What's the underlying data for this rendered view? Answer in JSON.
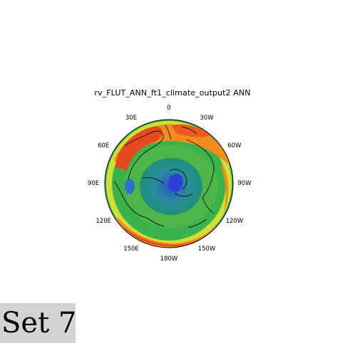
{
  "map": {
    "title": "rv_FLUT_ANN_ft1_climate_output2  ANN",
    "projection": "north polar stereographic",
    "longitude_labels": [
      {
        "id": "lon-0",
        "text": "0",
        "lon": 0
      },
      {
        "id": "lon-30w",
        "text": "30W",
        "lon": -30
      },
      {
        "id": "lon-60w",
        "text": "60W",
        "lon": -60
      },
      {
        "id": "lon-90w",
        "text": "90W",
        "lon": -90
      },
      {
        "id": "lon-120w",
        "text": "120W",
        "lon": -120
      },
      {
        "id": "lon-150w",
        "text": "150W",
        "lon": -150
      },
      {
        "id": "lon-180w",
        "text": "180W",
        "lon": 180
      },
      {
        "id": "lon-150e",
        "text": "150E",
        "lon": 150
      },
      {
        "id": "lon-120e",
        "text": "120E",
        "lon": 120
      },
      {
        "id": "lon-90e",
        "text": "90E",
        "lon": 90
      },
      {
        "id": "lon-60e",
        "text": "60E",
        "lon": 60
      },
      {
        "id": "lon-30e",
        "text": "30E",
        "lon": 30
      }
    ],
    "colors": {
      "outer_ring": "#3cb34a",
      "warm_band": "#f28c1e",
      "hot_band": "#e8481e",
      "mid_green": "#4fb548",
      "teal": "#1f8f7a",
      "pole_blue": "#2f5fd0",
      "yellow": "#d8e23a"
    }
  },
  "footer": {
    "set_label": "Set 7"
  }
}
